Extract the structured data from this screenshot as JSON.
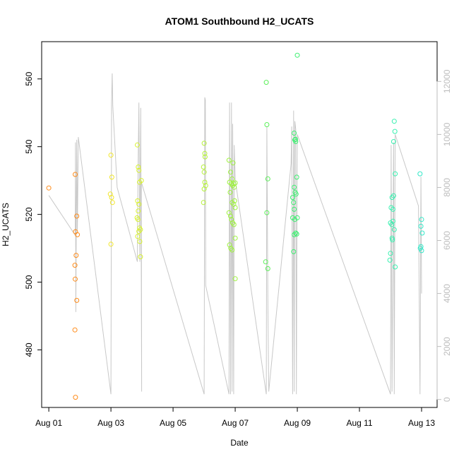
{
  "chart_data": {
    "type": "scatter",
    "title": "ATOM1 Southbound H2_UCATS",
    "xlabel": "Date",
    "ylabel": "H2_UCATS",
    "x_ticks": [
      "Aug 01",
      "Aug 03",
      "Aug 05",
      "Aug 07",
      "Aug 09",
      "Aug 11",
      "Aug 13"
    ],
    "x_tick_days": [
      1,
      3,
      5,
      7,
      9,
      11,
      13
    ],
    "xlim": [
      0.77,
      13.5
    ],
    "y_ticks": [
      480,
      500,
      520,
      540,
      560
    ],
    "ylim": [
      463,
      571
    ],
    "y2_ticks": [
      0,
      2000,
      4000,
      6000,
      8000,
      10000,
      12000
    ],
    "y2lim": [
      -300,
      13500
    ],
    "grid": false,
    "line_color": "#c8c8c8",
    "altitude_series": [
      [
        1.0,
        7700
      ],
      [
        1.85,
        6200
      ],
      [
        1.86,
        9700
      ],
      [
        1.87,
        3300
      ],
      [
        1.9,
        9800
      ],
      [
        1.92,
        6400
      ],
      [
        1.95,
        9900
      ],
      [
        3.0,
        200
      ],
      [
        3.02,
        11200
      ],
      [
        3.04,
        12300
      ],
      [
        3.06,
        11100
      ],
      [
        3.2,
        8000
      ],
      [
        3.85,
        5200
      ],
      [
        3.87,
        8400
      ],
      [
        3.9,
        11200
      ],
      [
        3.93,
        5200
      ],
      [
        3.96,
        11000
      ],
      [
        3.99,
        300
      ],
      [
        3.98,
        8200
      ],
      [
        6.0,
        200
      ],
      [
        6.02,
        11400
      ],
      [
        6.04,
        11300
      ],
      [
        6.05,
        4300
      ],
      [
        6.8,
        200
      ],
      [
        6.82,
        11200
      ],
      [
        6.85,
        200
      ],
      [
        6.88,
        11200
      ],
      [
        6.9,
        300
      ],
      [
        6.92,
        10400
      ],
      [
        6.95,
        200
      ],
      [
        6.97,
        9600
      ],
      [
        7.0,
        8300
      ],
      [
        8.0,
        200
      ],
      [
        8.02,
        10300
      ],
      [
        8.05,
        3800
      ],
      [
        8.08,
        300
      ],
      [
        8.8,
        8900
      ],
      [
        8.82,
        10300
      ],
      [
        8.85,
        200
      ],
      [
        8.88,
        10900
      ],
      [
        8.9,
        300
      ],
      [
        8.92,
        10500
      ],
      [
        8.95,
        10200
      ],
      [
        8.97,
        200
      ],
      [
        9.0,
        10000
      ],
      [
        12.0,
        200
      ],
      [
        12.02,
        9600
      ],
      [
        12.05,
        300
      ],
      [
        12.1,
        9700
      ],
      [
        12.12,
        200
      ],
      [
        12.15,
        10000
      ],
      [
        12.9,
        7300
      ],
      [
        12.95,
        200
      ],
      [
        12.98,
        8400
      ],
      [
        13.0,
        4000
      ]
    ],
    "series": [
      {
        "color": "#FF8C1A",
        "points": [
          [
            1.0,
            527.8
          ],
          [
            1.85,
            531.8
          ],
          [
            1.86,
            514.9
          ],
          [
            1.88,
            507.9
          ],
          [
            1.84,
            505.0
          ],
          [
            1.85,
            500.9
          ],
          [
            1.9,
            494.6
          ],
          [
            1.84,
            485.9
          ],
          [
            1.86,
            466.0
          ],
          [
            1.9,
            519.5
          ],
          [
            1.92,
            514.0
          ]
        ]
      },
      {
        "color": "#F2E629",
        "points": [
          [
            3.0,
            537.5
          ],
          [
            3.03,
            531.0
          ],
          [
            2.98,
            526.0
          ],
          [
            3.02,
            525.0
          ],
          [
            3.05,
            523.5
          ],
          [
            3.0,
            511.2
          ]
        ]
      },
      {
        "color": "#D8F22E",
        "points": [
          [
            3.85,
            540.5
          ],
          [
            3.88,
            534.0
          ],
          [
            3.9,
            533.0
          ],
          [
            3.92,
            529.5
          ],
          [
            3.86,
            524.0
          ],
          [
            3.9,
            523.0
          ],
          [
            3.88,
            521.0
          ],
          [
            3.84,
            519.0
          ],
          [
            3.87,
            518.5
          ],
          [
            3.92,
            516.0
          ],
          [
            3.95,
            515.5
          ],
          [
            3.9,
            515.0
          ],
          [
            3.86,
            513.5
          ],
          [
            3.93,
            512.0
          ],
          [
            3.95,
            507.5
          ],
          [
            3.98,
            530.0
          ]
        ]
      },
      {
        "color": "#B6F23A",
        "points": [
          [
            6.0,
            541.0
          ],
          [
            6.02,
            538.0
          ],
          [
            6.03,
            537.0
          ],
          [
            5.98,
            534.0
          ],
          [
            6.0,
            532.5
          ],
          [
            6.02,
            529.5
          ],
          [
            6.05,
            528.5
          ],
          [
            6.0,
            527.5
          ],
          [
            5.98,
            523.5
          ]
        ]
      },
      {
        "color": "#9EF23E",
        "points": [
          [
            6.8,
            536.0
          ],
          [
            6.85,
            532.5
          ],
          [
            6.9,
            530.5
          ],
          [
            6.82,
            529.5
          ],
          [
            6.88,
            529.0
          ],
          [
            6.92,
            528.5
          ],
          [
            6.95,
            529.0
          ],
          [
            7.0,
            529.3
          ],
          [
            6.84,
            526.5
          ],
          [
            6.98,
            524.0
          ],
          [
            6.9,
            523.5
          ],
          [
            6.95,
            523.0
          ],
          [
            7.0,
            522.0
          ],
          [
            6.8,
            520.5
          ],
          [
            6.85,
            519.5
          ],
          [
            6.88,
            518.5
          ],
          [
            6.92,
            517.5
          ],
          [
            6.96,
            517.0
          ],
          [
            7.0,
            513.0
          ],
          [
            6.82,
            511.0
          ],
          [
            6.86,
            510.0
          ],
          [
            6.9,
            509.5
          ],
          [
            7.0,
            501.0
          ],
          [
            6.93,
            535.2
          ],
          [
            6.97,
            528.0
          ]
        ]
      },
      {
        "color": "#5CF05A",
        "points": [
          [
            8.0,
            559.0
          ],
          [
            8.02,
            546.5
          ],
          [
            8.05,
            530.5
          ],
          [
            8.02,
            520.5
          ],
          [
            7.98,
            506.0
          ],
          [
            8.05,
            504.0
          ]
        ]
      },
      {
        "color": "#3CF070",
        "points": [
          [
            9.0,
            567.0
          ],
          [
            8.9,
            544.0
          ],
          [
            8.92,
            542.0
          ],
          [
            8.95,
            541.5
          ],
          [
            8.98,
            531.0
          ],
          [
            8.9,
            528.0
          ],
          [
            8.93,
            526.5
          ],
          [
            8.96,
            526.0
          ],
          [
            8.85,
            525.0
          ],
          [
            8.88,
            523.5
          ],
          [
            8.9,
            521.5
          ],
          [
            8.85,
            519.0
          ],
          [
            8.92,
            518.5
          ],
          [
            9.0,
            519.0
          ],
          [
            8.95,
            514.5
          ],
          [
            8.9,
            514.0
          ],
          [
            8.98,
            514.2
          ],
          [
            8.88,
            509.0
          ],
          [
            8.94,
            542.2
          ]
        ]
      },
      {
        "color": "#39F0B0",
        "points": [
          [
            12.12,
            547.5
          ],
          [
            12.14,
            544.5
          ],
          [
            12.1,
            541.5
          ],
          [
            12.15,
            532.0
          ],
          [
            12.05,
            525.0
          ],
          [
            12.1,
            525.5
          ],
          [
            12.02,
            522.0
          ],
          [
            12.08,
            521.5
          ],
          [
            12.0,
            517.5
          ],
          [
            12.04,
            517.0
          ],
          [
            12.12,
            515.5
          ],
          [
            12.05,
            513.0
          ],
          [
            12.0,
            508.5
          ],
          [
            11.98,
            506.5
          ],
          [
            12.15,
            504.5
          ],
          [
            12.08,
            518.0
          ],
          [
            12.06,
            512.5
          ]
        ]
      },
      {
        "color": "#33E8C8",
        "points": [
          [
            12.95,
            532.0
          ],
          [
            13.0,
            518.5
          ],
          [
            12.98,
            516.5
          ],
          [
            13.02,
            514.5
          ],
          [
            12.96,
            510.0
          ],
          [
            13.0,
            509.3
          ],
          [
            12.98,
            510.5
          ]
        ]
      }
    ]
  }
}
